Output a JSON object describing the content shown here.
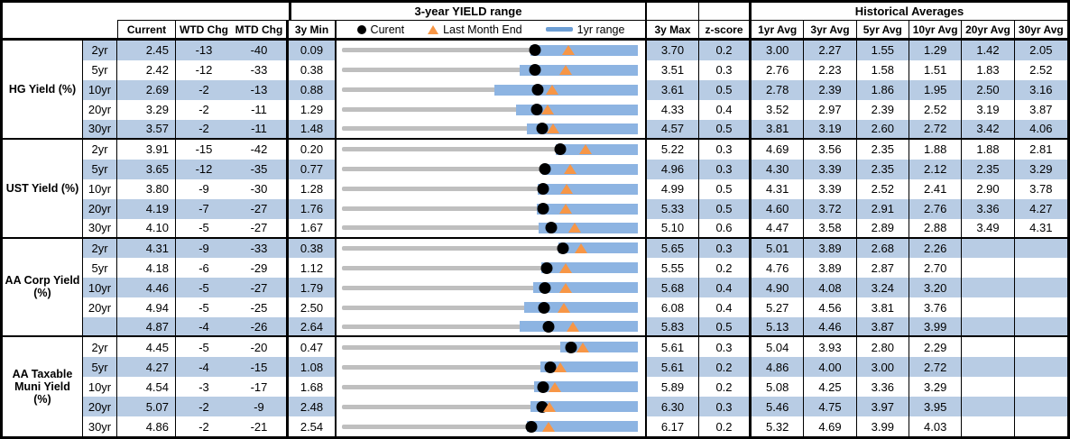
{
  "colors": {
    "stripe": "#b8cce4",
    "bar": "#8db4e2",
    "track": "#bfbfbf",
    "orange": "#f79646",
    "legendbar": "#6d9ed4"
  },
  "header": {
    "range_title": "3-year YIELD range",
    "hist_title": "Historical Averages",
    "current": "Current",
    "wtd": "WTD Chg",
    "mtd": "MTD Chg",
    "min3y": "3y Min",
    "max3y": "3y Max",
    "zscore": "z-score",
    "avg_cols": [
      "1yr Avg",
      "3yr Avg",
      "5yr Avg",
      "10yr Avg",
      "20yr Avg",
      "30yr Avg"
    ],
    "legend": {
      "current": "Curent",
      "lme": "Last Month End",
      "range": "1yr range"
    }
  },
  "chart_data": {
    "type": "table",
    "title": "3-year YIELD range",
    "legend_entries": [
      "Curent",
      "Last Month End",
      "1yr range"
    ],
    "row_chart_note": "Each row contains a bullet/range chart spanning min_3y (left edge) to max_3y (right edge). Gray track = 3y range, blue bar = 1yr range (its high equals max_3y), black dot = current yield, orange triangle = last month end yield (current - mtd_chg/100). last_month_end and yr1_low are values read off the chart.",
    "groups": [
      {
        "label": "HG Yield (%)",
        "rows": [
          {
            "tenor": "2yr",
            "current": "2.45",
            "wtd_chg": "-13",
            "mtd_chg": "-40",
            "min_3y": "0.09",
            "max_3y": "3.70",
            "z_score": "0.2",
            "avgs": [
              "3.00",
              "2.27",
              "1.55",
              "1.29",
              "1.42",
              "2.05"
            ],
            "last_month_end": 2.85,
            "yr1_low": 2.39
          },
          {
            "tenor": "5yr",
            "current": "2.42",
            "wtd_chg": "-12",
            "mtd_chg": "-33",
            "min_3y": "0.38",
            "max_3y": "3.51",
            "z_score": "0.3",
            "avgs": [
              "2.76",
              "2.23",
              "1.58",
              "1.51",
              "1.83",
              "2.52"
            ],
            "last_month_end": 2.75,
            "yr1_low": 2.26
          },
          {
            "tenor": "10yr",
            "current": "2.69",
            "wtd_chg": "-2",
            "mtd_chg": "-13",
            "min_3y": "0.88",
            "max_3y": "3.61",
            "z_score": "0.5",
            "avgs": [
              "2.78",
              "2.39",
              "1.86",
              "1.95",
              "2.50",
              "3.16"
            ],
            "last_month_end": 2.82,
            "yr1_low": 2.29
          },
          {
            "tenor": "20yr",
            "current": "3.29",
            "wtd_chg": "-2",
            "mtd_chg": "-11",
            "min_3y": "1.29",
            "max_3y": "4.33",
            "z_score": "0.4",
            "avgs": [
              "3.52",
              "2.97",
              "2.39",
              "2.52",
              "3.19",
              "3.87"
            ],
            "last_month_end": 3.4,
            "yr1_low": 3.08
          },
          {
            "tenor": "30yr",
            "current": "3.57",
            "wtd_chg": "-2",
            "mtd_chg": "-11",
            "min_3y": "1.48",
            "max_3y": "4.57",
            "z_score": "0.5",
            "avgs": [
              "3.81",
              "3.19",
              "2.60",
              "2.72",
              "3.42",
              "4.06"
            ],
            "last_month_end": 3.68,
            "yr1_low": 3.41
          }
        ]
      },
      {
        "label": "UST Yield (%)",
        "rows": [
          {
            "tenor": "2yr",
            "current": "3.91",
            "wtd_chg": "-15",
            "mtd_chg": "-42",
            "min_3y": "0.20",
            "max_3y": "5.22",
            "z_score": "0.3",
            "avgs": [
              "4.69",
              "3.56",
              "2.35",
              "1.88",
              "1.88",
              "2.81"
            ],
            "last_month_end": 4.33,
            "yr1_low": 3.83
          },
          {
            "tenor": "5yr",
            "current": "3.65",
            "wtd_chg": "-12",
            "mtd_chg": "-35",
            "min_3y": "0.77",
            "max_3y": "4.96",
            "z_score": "0.3",
            "avgs": [
              "4.30",
              "3.39",
              "2.35",
              "2.12",
              "2.35",
              "3.29"
            ],
            "last_month_end": 4.0,
            "yr1_low": 3.6
          },
          {
            "tenor": "10yr",
            "current": "3.80",
            "wtd_chg": "-9",
            "mtd_chg": "-30",
            "min_3y": "1.28",
            "max_3y": "4.99",
            "z_score": "0.5",
            "avgs": [
              "4.31",
              "3.39",
              "2.52",
              "2.41",
              "2.90",
              "3.78"
            ],
            "last_month_end": 4.1,
            "yr1_low": 3.74
          },
          {
            "tenor": "20yr",
            "current": "4.19",
            "wtd_chg": "-7",
            "mtd_chg": "-27",
            "min_3y": "1.76",
            "max_3y": "5.33",
            "z_score": "0.5",
            "avgs": [
              "4.60",
              "3.72",
              "2.91",
              "2.76",
              "3.36",
              "4.27"
            ],
            "last_month_end": 4.46,
            "yr1_low": 4.11
          },
          {
            "tenor": "30yr",
            "current": "4.10",
            "wtd_chg": "-5",
            "mtd_chg": "-27",
            "min_3y": "1.67",
            "max_3y": "5.10",
            "z_score": "0.6",
            "avgs": [
              "4.47",
              "3.58",
              "2.89",
              "2.88",
              "3.49",
              "4.31"
            ],
            "last_month_end": 4.37,
            "yr1_low": 3.95
          }
        ]
      },
      {
        "label": "AA Corp Yield (%)",
        "rows": [
          {
            "tenor": "2yr",
            "current": "4.31",
            "wtd_chg": "-9",
            "mtd_chg": "-33",
            "min_3y": "0.38",
            "max_3y": "5.65",
            "z_score": "0.3",
            "avgs": [
              "5.01",
              "3.89",
              "2.68",
              "2.26",
              "",
              ""
            ],
            "last_month_end": 4.64,
            "yr1_low": 4.23
          },
          {
            "tenor": "5yr",
            "current": "4.18",
            "wtd_chg": "-6",
            "mtd_chg": "-29",
            "min_3y": "1.12",
            "max_3y": "5.55",
            "z_score": "0.2",
            "avgs": [
              "4.76",
              "3.89",
              "2.87",
              "2.70",
              "",
              ""
            ],
            "last_month_end": 4.47,
            "yr1_low": 4.11
          },
          {
            "tenor": "10yr",
            "current": "4.46",
            "wtd_chg": "-5",
            "mtd_chg": "-27",
            "min_3y": "1.79",
            "max_3y": "5.68",
            "z_score": "0.4",
            "avgs": [
              "4.90",
              "4.08",
              "3.24",
              "3.20",
              "",
              ""
            ],
            "last_month_end": 4.73,
            "yr1_low": 4.31
          },
          {
            "tenor": "20yr",
            "current": "4.94",
            "wtd_chg": "-5",
            "mtd_chg": "-25",
            "min_3y": "2.50",
            "max_3y": "6.08",
            "z_score": "0.4",
            "avgs": [
              "5.27",
              "4.56",
              "3.81",
              "3.76",
              "",
              ""
            ],
            "last_month_end": 5.19,
            "yr1_low": 4.7
          },
          {
            "tenor": "",
            "current": "4.87",
            "wtd_chg": "-4",
            "mtd_chg": "-26",
            "min_3y": "2.64",
            "max_3y": "5.83",
            "z_score": "0.5",
            "avgs": [
              "5.13",
              "4.46",
              "3.87",
              "3.99",
              "",
              ""
            ],
            "last_month_end": 5.13,
            "yr1_low": 4.56
          }
        ]
      },
      {
        "label": "AA Taxable Muni Yield (%)",
        "rows": [
          {
            "tenor": "2yr",
            "current": "4.45",
            "wtd_chg": "-5",
            "mtd_chg": "-20",
            "min_3y": "0.47",
            "max_3y": "5.61",
            "z_score": "0.3",
            "avgs": [
              "5.04",
              "3.93",
              "2.80",
              "2.29",
              "",
              ""
            ],
            "last_month_end": 4.65,
            "yr1_low": 4.27
          },
          {
            "tenor": "5yr",
            "current": "4.27",
            "wtd_chg": "-4",
            "mtd_chg": "-15",
            "min_3y": "1.08",
            "max_3y": "5.61",
            "z_score": "0.2",
            "avgs": [
              "4.86",
              "4.00",
              "3.00",
              "2.72",
              "",
              ""
            ],
            "last_month_end": 4.42,
            "yr1_low": 4.12
          },
          {
            "tenor": "10yr",
            "current": "4.54",
            "wtd_chg": "-3",
            "mtd_chg": "-17",
            "min_3y": "1.68",
            "max_3y": "5.89",
            "z_score": "0.2",
            "avgs": [
              "5.08",
              "4.25",
              "3.36",
              "3.29",
              "",
              ""
            ],
            "last_month_end": 4.71,
            "yr1_low": 4.42
          },
          {
            "tenor": "20yr",
            "current": "5.07",
            "wtd_chg": "-2",
            "mtd_chg": "-9",
            "min_3y": "2.48",
            "max_3y": "6.30",
            "z_score": "0.3",
            "avgs": [
              "5.46",
              "4.75",
              "3.97",
              "3.95",
              "",
              ""
            ],
            "last_month_end": 5.16,
            "yr1_low": 4.92
          },
          {
            "tenor": "30yr",
            "current": "4.86",
            "wtd_chg": "-2",
            "mtd_chg": "-21",
            "min_3y": "2.54",
            "max_3y": "6.17",
            "z_score": "0.2",
            "avgs": [
              "5.32",
              "4.69",
              "3.99",
              "4.03",
              "",
              ""
            ],
            "last_month_end": 5.07,
            "yr1_low": 4.81
          }
        ]
      }
    ]
  }
}
